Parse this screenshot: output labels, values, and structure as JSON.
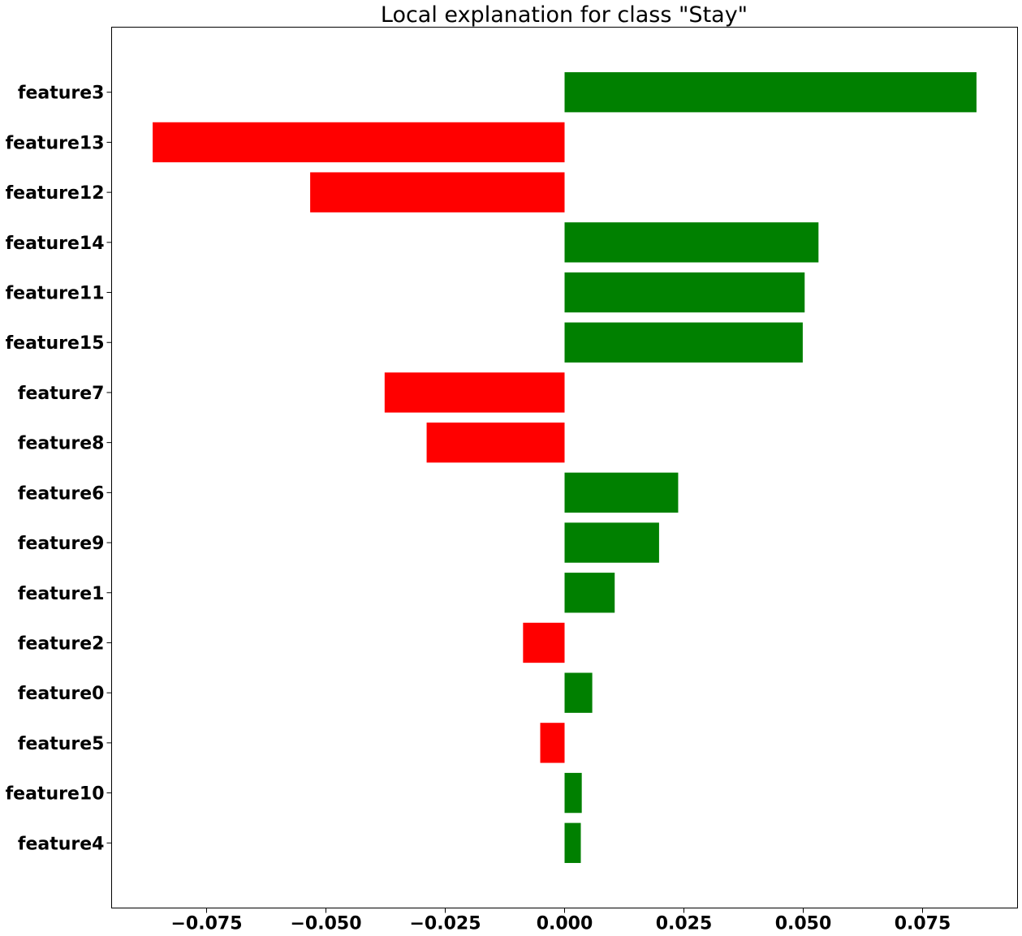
{
  "chart_data": {
    "type": "bar",
    "orientation": "horizontal",
    "title": "Local explanation for class \"Stay\"",
    "xlabel": "",
    "ylabel": "",
    "categories": [
      "feature3",
      "feature13",
      "feature12",
      "feature14",
      "feature11",
      "feature15",
      "feature7",
      "feature8",
      "feature6",
      "feature9",
      "feature1",
      "feature2",
      "feature0",
      "feature5",
      "feature10",
      "feature4"
    ],
    "values": [
      0.0863,
      -0.0863,
      -0.0533,
      0.0532,
      0.0503,
      0.0499,
      -0.0377,
      -0.0289,
      0.0238,
      0.0198,
      0.0105,
      -0.0087,
      0.0058,
      -0.0051,
      0.0036,
      0.0034
    ],
    "xlim": [
      -0.0949,
      0.0949
    ],
    "xticks": [
      -0.075,
      -0.05,
      -0.025,
      0.0,
      0.025,
      0.05,
      0.075
    ],
    "xtick_labels": [
      "−0.075",
      "−0.050",
      "−0.025",
      "0.000",
      "0.025",
      "0.050",
      "0.075"
    ],
    "grid": false,
    "legend": "none",
    "colors": {
      "positive": "#008000",
      "negative": "#ff0000"
    }
  }
}
